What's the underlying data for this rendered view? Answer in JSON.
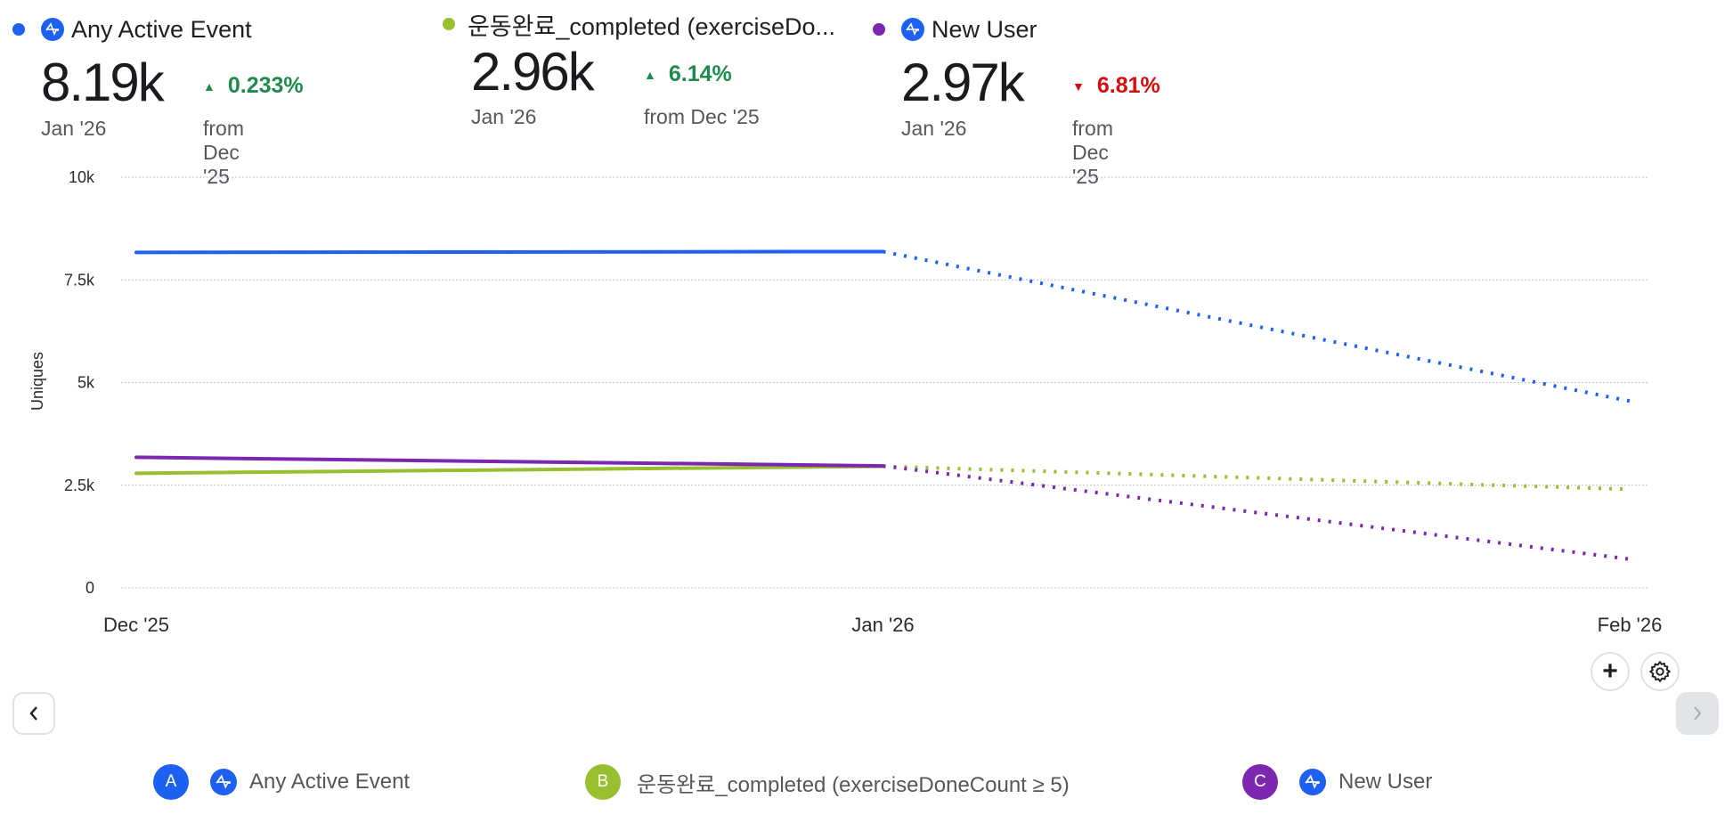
{
  "summary": [
    {
      "label": "Any Active Event",
      "color": "#1e61f0",
      "has_icon": true,
      "value": "8.19k",
      "period": "Jan '26",
      "change": "0.233%",
      "direction": "up",
      "from": "from Dec '25"
    },
    {
      "label": "운동완료_completed (exerciseDo...",
      "color": "#98bf2f",
      "has_icon": false,
      "value": "2.96k",
      "period": "Jan '26",
      "change": "6.14%",
      "direction": "up",
      "from": "from Dec '25"
    },
    {
      "label": "New User",
      "color": "#7b27b0",
      "has_icon": true,
      "value": "2.97k",
      "period": "Jan '26",
      "change": "6.81%",
      "direction": "down",
      "from": "from Dec '25"
    }
  ],
  "chart_data": {
    "type": "line",
    "title": "",
    "xlabel": "",
    "ylabel": "Uniques",
    "categories": [
      "Dec '25",
      "Jan '26",
      "Feb '26"
    ],
    "y_ticks": [
      "0",
      "2.5k",
      "5k",
      "7.5k",
      "10k"
    ],
    "y_tick_values": [
      0,
      2500,
      5000,
      7500,
      10000
    ],
    "ylim": [
      0,
      10000
    ],
    "grid": true,
    "grid_style": "dotted",
    "incomplete_from_index": 1,
    "series": [
      {
        "name": "Any Active Event",
        "color": "#1e61f0",
        "values": [
          8170,
          8190,
          4550
        ]
      },
      {
        "name": "운동완료_completed (exerciseDoneCount ≥ 5)",
        "color": "#98bf2f",
        "values": [
          2790,
          2960,
          2400
        ]
      },
      {
        "name": "New User",
        "color": "#7b27b0",
        "values": [
          3180,
          2970,
          700
        ]
      }
    ]
  },
  "controls": {
    "add_label": "+",
    "settings_icon": "gear-icon",
    "prev_icon": "chevron-left-icon",
    "next_icon": "chevron-right-icon"
  },
  "legend": [
    {
      "badge": "A",
      "color": "#1e61f0",
      "has_icon": true,
      "label": "Any Active Event"
    },
    {
      "badge": "B",
      "color": "#98bf2f",
      "has_icon": false,
      "label": "운동완료_completed (exerciseDoneCount ≥ 5)"
    },
    {
      "badge": "C",
      "color": "#7b27b0",
      "has_icon": true,
      "label": "New User"
    }
  ]
}
